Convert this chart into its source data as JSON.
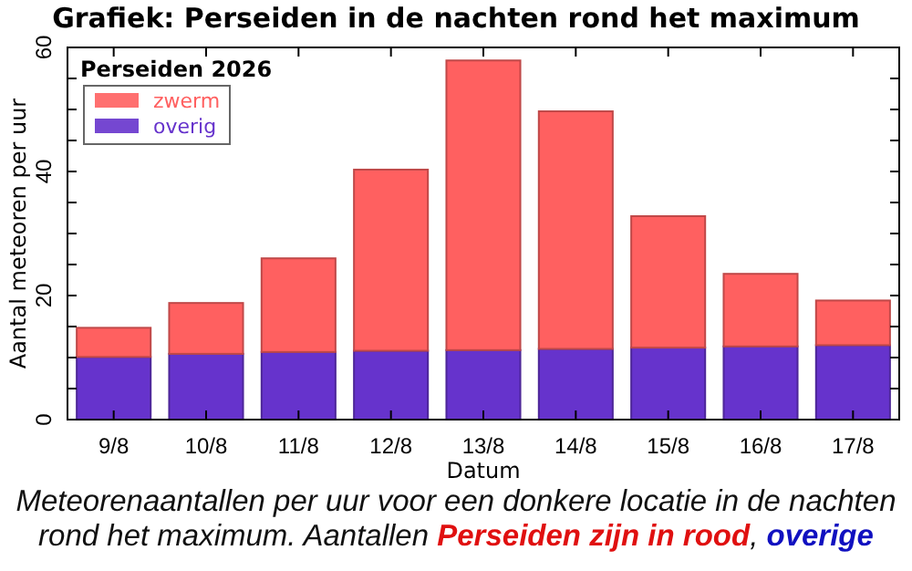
{
  "chart_data": {
    "type": "bar",
    "title": "Grafiek: Perseiden in de nachten rond het maximum",
    "xlabel": "Datum",
    "ylabel": "Aantal meteoren per uur",
    "legend_title": "Perseiden 2026",
    "stacked": true,
    "legend": "top left",
    "grid": false,
    "categories": [
      "9/8",
      "10/8",
      "11/8",
      "12/8",
      "13/8",
      "14/8",
      "15/8",
      "16/8",
      "17/8"
    ],
    "series": [
      {
        "name": "overig",
        "color": "#6633cc",
        "values": [
          10.1,
          10.6,
          10.9,
          11.1,
          11.2,
          11.4,
          11.6,
          11.8,
          12.0
        ]
      },
      {
        "name": "zwerm",
        "color": "#ff6060",
        "values": [
          4.7,
          8.2,
          15.1,
          29.2,
          46.7,
          38.3,
          21.2,
          11.7,
          7.2
        ]
      }
    ],
    "ylim": [
      0,
      60
    ],
    "yticks": [
      0,
      {
        "value": 5,
        "label": null
      },
      {
        "value": 10,
        "label": null
      },
      {
        "value": 15,
        "label": null
      },
      20,
      {
        "value": 25,
        "label": null
      },
      {
        "value": 30,
        "label": null
      },
      {
        "value": 35,
        "label": null
      },
      40,
      {
        "value": 45,
        "label": null
      },
      {
        "value": 50,
        "label": null
      },
      {
        "value": 55,
        "label": null
      },
      60
    ],
    "annotations": [
      "Meteorenaantallen per uur voor een donkere locatie in de nachten rond het maximum. Aantallen ",
      "Perseiden zijn in rood",
      ", ",
      "overige"
    ]
  }
}
